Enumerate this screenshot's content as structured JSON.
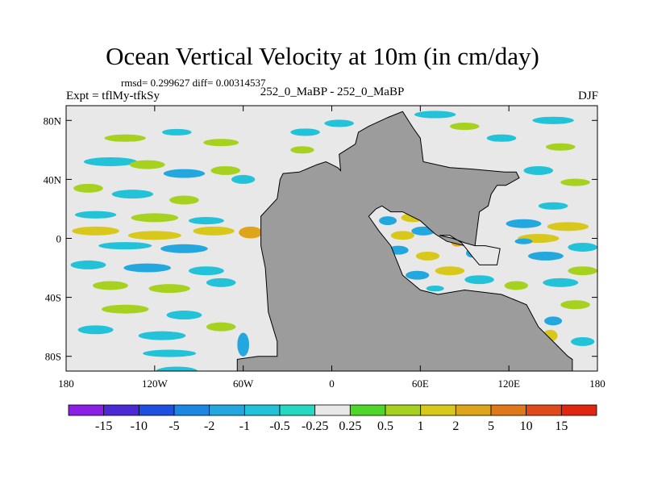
{
  "chart_data": {
    "type": "heatmap",
    "title": "Ocean Vertical Velocity at 10m (in cm/day)",
    "stats": "rmsd= 0.299627 diff= 0.00314537",
    "left_label": "Expt = tflMy-tfkSy",
    "center_label": "252_0_MaBP - 252_0_MaBP",
    "right_label": "DJF",
    "xlim": [
      -180,
      180
    ],
    "ylim": [
      -90,
      90
    ],
    "x_ticks": [
      {
        "value": -180,
        "label": "180"
      },
      {
        "value": -120,
        "label": "120W"
      },
      {
        "value": -60,
        "label": "60W"
      },
      {
        "value": 0,
        "label": "0"
      },
      {
        "value": 60,
        "label": "60E"
      },
      {
        "value": 120,
        "label": "120E"
      },
      {
        "value": 180,
        "label": "180"
      }
    ],
    "y_ticks": [
      {
        "value": 80,
        "label": "80N"
      },
      {
        "value": 40,
        "label": "40N"
      },
      {
        "value": 0,
        "label": "0"
      },
      {
        "value": -40,
        "label": "40S"
      },
      {
        "value": -80,
        "label": "80S"
      }
    ],
    "colorbar": {
      "colors": [
        "#8b1fe6",
        "#4b2ad6",
        "#1f4fe0",
        "#1c86e3",
        "#22a8df",
        "#22c2d9",
        "#25d8c2",
        "#e8e8e8",
        "#4fd62a",
        "#a6d21f",
        "#d8c81b",
        "#dfa51a",
        "#e0781a",
        "#e04a1a",
        "#e0260f"
      ],
      "labels": [
        "-15",
        "-10",
        "-5",
        "-2",
        "-1",
        "-0.5",
        "-0.25",
        "0.25",
        "0.5",
        "1",
        "2",
        "5",
        "10",
        "15"
      ]
    },
    "land_color": "#9c9c9c",
    "ocean_color": "#e8e8e8",
    "continent_outline": [
      [
        -37,
        -80
      ],
      [
        -37,
        -70
      ],
      [
        -40,
        -60
      ],
      [
        -43,
        -50
      ],
      [
        -44,
        -35
      ],
      [
        -45,
        -20
      ],
      [
        -48,
        -5
      ],
      [
        -48,
        15
      ],
      [
        -37,
        27
      ],
      [
        -35,
        40
      ],
      [
        -33,
        44
      ],
      [
        -22,
        45
      ],
      [
        -10,
        50
      ],
      [
        -4,
        52
      ],
      [
        0,
        50
      ],
      [
        4,
        48
      ],
      [
        6,
        46
      ],
      [
        5,
        57
      ],
      [
        16,
        64
      ],
      [
        18,
        72
      ],
      [
        25,
        76
      ],
      [
        38,
        82
      ],
      [
        48,
        86
      ],
      [
        55,
        75
      ],
      [
        60,
        68
      ],
      [
        62,
        52
      ],
      [
        80,
        48
      ],
      [
        95,
        47
      ],
      [
        117,
        45
      ],
      [
        125,
        45
      ],
      [
        127,
        41
      ],
      [
        118,
        36
      ],
      [
        112,
        36
      ],
      [
        108,
        30
      ],
      [
        106,
        22
      ],
      [
        100,
        18
      ],
      [
        97,
        -5
      ],
      [
        90,
        -5
      ],
      [
        78,
        -2
      ],
      [
        70,
        3
      ],
      [
        60,
        12
      ],
      [
        48,
        18
      ],
      [
        40,
        18
      ],
      [
        34,
        22
      ],
      [
        30,
        20
      ],
      [
        25,
        15
      ],
      [
        32,
        5
      ],
      [
        40,
        -5
      ],
      [
        48,
        -25
      ],
      [
        60,
        -35
      ],
      [
        72,
        -38
      ],
      [
        90,
        -35
      ],
      [
        115,
        -38
      ],
      [
        132,
        -45
      ],
      [
        140,
        -60
      ],
      [
        150,
        -70
      ],
      [
        160,
        -80
      ],
      [
        163,
        -82
      ],
      [
        163,
        -90
      ],
      [
        -64,
        -90
      ],
      [
        -64,
        -82
      ],
      [
        -50,
        -80
      ],
      [
        -37,
        -80
      ]
    ],
    "inner_sea": [
      [
        73,
        2
      ],
      [
        80,
        2
      ],
      [
        88,
        -3
      ],
      [
        95,
        -12
      ],
      [
        100,
        -18
      ],
      [
        112,
        -18
      ],
      [
        114,
        -7
      ],
      [
        104,
        -5
      ],
      [
        97,
        -5
      ],
      [
        90,
        -3
      ],
      [
        82,
        0
      ],
      [
        73,
        2
      ]
    ],
    "anomaly_patches": [
      {
        "lon": -140,
        "lat": 68,
        "rx": 14,
        "ry": 2.5,
        "level": 0.7
      },
      {
        "lon": -105,
        "lat": 72,
        "rx": 10,
        "ry": 2.2,
        "level": -0.7
      },
      {
        "lon": -75,
        "lat": 65,
        "rx": 12,
        "ry": 2.5,
        "level": 0.6
      },
      {
        "lon": -150,
        "lat": 52,
        "rx": 18,
        "ry": 3,
        "level": -0.7
      },
      {
        "lon": -125,
        "lat": 50,
        "rx": 12,
        "ry": 3,
        "level": 0.7
      },
      {
        "lon": -100,
        "lat": 44,
        "rx": 14,
        "ry": 3,
        "level": -1.2
      },
      {
        "lon": -72,
        "lat": 46,
        "rx": 10,
        "ry": 3,
        "level": 0.7
      },
      {
        "lon": -60,
        "lat": 40,
        "rx": 8,
        "ry": 3,
        "level": -0.8
      },
      {
        "lon": -165,
        "lat": 34,
        "rx": 10,
        "ry": 3,
        "level": 0.6
      },
      {
        "lon": -135,
        "lat": 30,
        "rx": 14,
        "ry": 3,
        "level": -0.9
      },
      {
        "lon": -100,
        "lat": 26,
        "rx": 10,
        "ry": 3,
        "level": 0.6
      },
      {
        "lon": -160,
        "lat": 16,
        "rx": 14,
        "ry": 2.5,
        "level": -0.8
      },
      {
        "lon": -120,
        "lat": 14,
        "rx": 16,
        "ry": 3,
        "level": 0.7
      },
      {
        "lon": -85,
        "lat": 12,
        "rx": 12,
        "ry": 2.5,
        "level": -0.7
      },
      {
        "lon": -160,
        "lat": 5,
        "rx": 16,
        "ry": 3,
        "level": 1.4
      },
      {
        "lon": -120,
        "lat": 2,
        "rx": 18,
        "ry": 3,
        "level": 1.2
      },
      {
        "lon": -80,
        "lat": 5,
        "rx": 14,
        "ry": 3,
        "level": 1.1
      },
      {
        "lon": -55,
        "lat": 4,
        "rx": 8,
        "ry": 4,
        "level": 2.5
      },
      {
        "lon": -140,
        "lat": -5,
        "rx": 18,
        "ry": 2.5,
        "level": -0.9
      },
      {
        "lon": -100,
        "lat": -7,
        "rx": 16,
        "ry": 3,
        "level": -1.1
      },
      {
        "lon": -165,
        "lat": -18,
        "rx": 12,
        "ry": 3,
        "level": -0.8
      },
      {
        "lon": -125,
        "lat": -20,
        "rx": 16,
        "ry": 3,
        "level": -1.3
      },
      {
        "lon": -85,
        "lat": -22,
        "rx": 12,
        "ry": 3,
        "level": -0.8
      },
      {
        "lon": -150,
        "lat": -32,
        "rx": 12,
        "ry": 3,
        "level": 0.7
      },
      {
        "lon": -110,
        "lat": -34,
        "rx": 14,
        "ry": 3,
        "level": 0.6
      },
      {
        "lon": -75,
        "lat": -30,
        "rx": 10,
        "ry": 3,
        "level": -0.7
      },
      {
        "lon": -140,
        "lat": -48,
        "rx": 16,
        "ry": 3,
        "level": 0.8
      },
      {
        "lon": -100,
        "lat": -52,
        "rx": 12,
        "ry": 3,
        "level": -0.7
      },
      {
        "lon": -160,
        "lat": -62,
        "rx": 12,
        "ry": 3,
        "level": -0.9
      },
      {
        "lon": -115,
        "lat": -66,
        "rx": 16,
        "ry": 3,
        "level": -0.8
      },
      {
        "lon": -75,
        "lat": -60,
        "rx": 10,
        "ry": 3,
        "level": 0.7
      },
      {
        "lon": -110,
        "lat": -78,
        "rx": 18,
        "ry": 2.5,
        "level": -0.7
      },
      {
        "lon": -60,
        "lat": -72,
        "rx": 4,
        "ry": 8,
        "level": -1.3
      },
      {
        "lon": -42,
        "lat": -20,
        "rx": 3,
        "ry": 18,
        "level": -0.8
      },
      {
        "lon": -18,
        "lat": 72,
        "rx": 10,
        "ry": 2.5,
        "level": -0.8
      },
      {
        "lon": 5,
        "lat": 78,
        "rx": 10,
        "ry": 2.5,
        "level": -0.9
      },
      {
        "lon": -20,
        "lat": 60,
        "rx": 8,
        "ry": 2.5,
        "level": 0.6
      },
      {
        "lon": 70,
        "lat": 84,
        "rx": 14,
        "ry": 2.5,
        "level": -0.8
      },
      {
        "lon": 90,
        "lat": 76,
        "rx": 10,
        "ry": 2.5,
        "level": 0.7
      },
      {
        "lon": 115,
        "lat": 68,
        "rx": 10,
        "ry": 2.5,
        "level": -0.7
      },
      {
        "lon": 150,
        "lat": 80,
        "rx": 14,
        "ry": 2.5,
        "level": -0.8
      },
      {
        "lon": 155,
        "lat": 62,
        "rx": 10,
        "ry": 2.5,
        "level": 0.6
      },
      {
        "lon": 140,
        "lat": 46,
        "rx": 10,
        "ry": 3,
        "level": -0.9
      },
      {
        "lon": 165,
        "lat": 38,
        "rx": 10,
        "ry": 2.5,
        "level": 0.7
      },
      {
        "lon": 150,
        "lat": 22,
        "rx": 10,
        "ry": 2.5,
        "level": -0.7
      },
      {
        "lon": -5,
        "lat": 46,
        "rx": 3,
        "ry": 2,
        "level": -1.2
      },
      {
        "lon": 12,
        "lat": 46,
        "rx": 3,
        "ry": 2,
        "level": -1.0
      },
      {
        "lon": 38,
        "lat": 12,
        "rx": 6,
        "ry": 3,
        "level": -1.3
      },
      {
        "lon": 55,
        "lat": 14,
        "rx": 8,
        "ry": 3,
        "level": 1.4
      },
      {
        "lon": 62,
        "lat": 5,
        "rx": 8,
        "ry": 3,
        "level": -1.1
      },
      {
        "lon": 48,
        "lat": 2,
        "rx": 8,
        "ry": 3,
        "level": 1.3
      },
      {
        "lon": 45,
        "lat": -8,
        "rx": 7,
        "ry": 3,
        "level": -1.2
      },
      {
        "lon": 65,
        "lat": -12,
        "rx": 8,
        "ry": 3,
        "level": 1.6
      },
      {
        "lon": 78,
        "lat": 8,
        "rx": 6,
        "ry": 3,
        "level": -1.2
      },
      {
        "lon": 85,
        "lat": -3,
        "rx": 4,
        "ry": 2.5,
        "level": 2.4
      },
      {
        "lon": 95,
        "lat": -10,
        "rx": 4,
        "ry": 3,
        "level": -1.3
      },
      {
        "lon": 103,
        "lat": -12,
        "rx": 3,
        "ry": 2,
        "level": 3.2
      },
      {
        "lon": 58,
        "lat": -25,
        "rx": 8,
        "ry": 3,
        "level": -1.1
      },
      {
        "lon": 80,
        "lat": -22,
        "rx": 10,
        "ry": 3,
        "level": 1.2
      },
      {
        "lon": 100,
        "lat": -28,
        "rx": 10,
        "ry": 3,
        "level": -0.8
      },
      {
        "lon": 125,
        "lat": -32,
        "rx": 8,
        "ry": 3,
        "level": 0.7
      },
      {
        "lon": 70,
        "lat": -34,
        "rx": 6,
        "ry": 2,
        "level": -1.0
      },
      {
        "lon": 130,
        "lat": 10,
        "rx": 12,
        "ry": 3,
        "level": -1.1
      },
      {
        "lon": 140,
        "lat": 0,
        "rx": 14,
        "ry": 3,
        "level": 1.5
      },
      {
        "lon": 160,
        "lat": 8,
        "rx": 14,
        "ry": 3,
        "level": 1.3
      },
      {
        "lon": 170,
        "lat": -6,
        "rx": 10,
        "ry": 3,
        "level": -1.0
      },
      {
        "lon": 145,
        "lat": -12,
        "rx": 12,
        "ry": 3,
        "level": -1.2
      },
      {
        "lon": 130,
        "lat": -2,
        "rx": 6,
        "ry": 2,
        "level": -1.4
      },
      {
        "lon": 170,
        "lat": -22,
        "rx": 10,
        "ry": 3,
        "level": 0.7
      },
      {
        "lon": 155,
        "lat": -30,
        "rx": 12,
        "ry": 3,
        "level": -0.8
      },
      {
        "lon": 165,
        "lat": -45,
        "rx": 10,
        "ry": 3,
        "level": 0.6
      },
      {
        "lon": 150,
        "lat": -56,
        "rx": 6,
        "ry": 3,
        "level": -1.1
      },
      {
        "lon": 148,
        "lat": -66,
        "rx": 5,
        "ry": 4,
        "level": 1.4
      },
      {
        "lon": 170,
        "lat": -70,
        "rx": 8,
        "ry": 3,
        "level": -0.9
      },
      {
        "lon": -105,
        "lat": -90,
        "rx": 14,
        "ry": 3,
        "level": -0.6
      }
    ]
  }
}
